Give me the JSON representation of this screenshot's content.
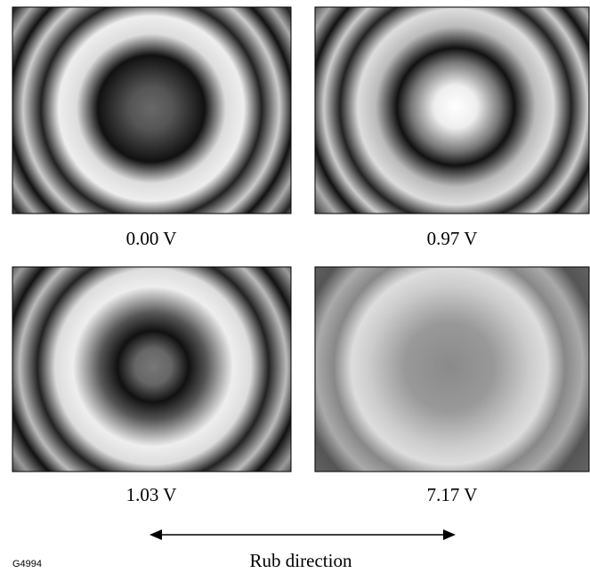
{
  "panels": [
    {
      "label": "0.00 V"
    },
    {
      "label": "0.97 V"
    },
    {
      "label": "1.03 V"
    },
    {
      "label": "7.17 V"
    }
  ],
  "arrow_label": "Rub direction",
  "figure_id": "G4994"
}
